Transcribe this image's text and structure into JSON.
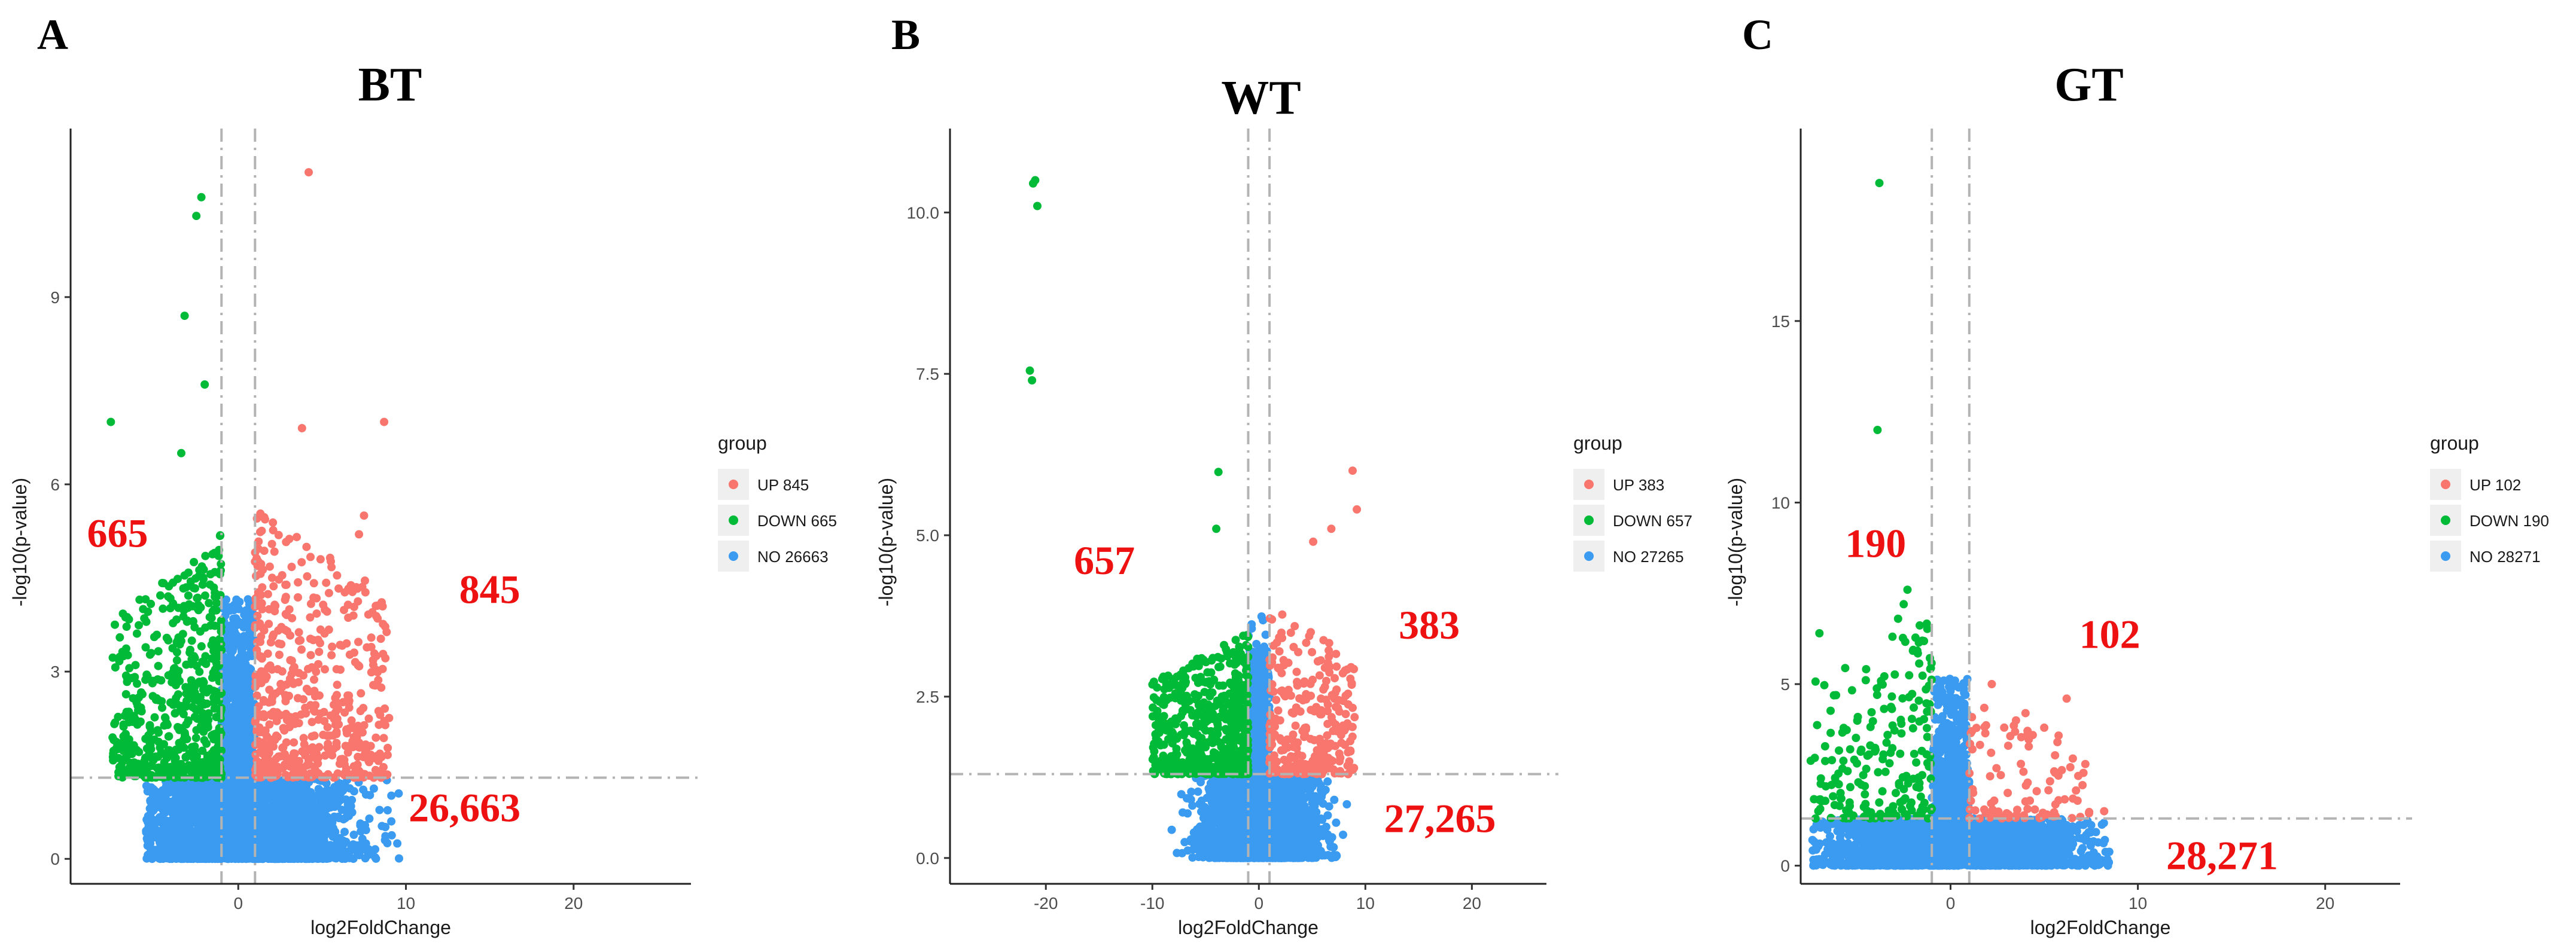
{
  "colors": {
    "up": "#F8766D",
    "down": "#00BA38",
    "no": "#3A9BF0",
    "annotation": "#EE1111",
    "threshold_line": "#B3B3B3"
  },
  "legend_title": "group",
  "chart_data": [
    {
      "type": "scatter",
      "panel": "A",
      "title": "BT",
      "xlabel": "log2FoldChange",
      "ylabel": "-log10(p-value)",
      "xlim": [
        -10,
        27
      ],
      "ylim": [
        -0.4,
        11.7
      ],
      "xticks": [
        0,
        10,
        20
      ],
      "yticks": [
        0,
        3,
        6,
        9
      ],
      "ytick_labels": [
        "0",
        "3",
        "6",
        "9"
      ],
      "fc_threshold": 1,
      "p_threshold_y": 1.3,
      "legend": [
        {
          "group": "UP",
          "label": "UP 845"
        },
        {
          "group": "DOWN",
          "label": "DOWN 665"
        },
        {
          "group": "NO",
          "label": "NO 26663"
        }
      ],
      "counts": {
        "up": 845,
        "down": 665,
        "no": 26663
      },
      "annotations": [
        {
          "text": "665",
          "x": -7.2,
          "y": 5.0
        },
        {
          "text": "845",
          "x": 15.0,
          "y": 4.1
        },
        {
          "text": "26,663",
          "x": 13.5,
          "y": 0.6
        }
      ],
      "up_extremes": [
        [
          4.2,
          11.0
        ],
        [
          8.7,
          7.0
        ],
        [
          7.5,
          5.5
        ],
        [
          7.2,
          5.2
        ],
        [
          3.8,
          6.9
        ]
      ],
      "down_extremes": [
        [
          -2.2,
          10.6
        ],
        [
          -2.5,
          10.3
        ],
        [
          -3.2,
          8.7
        ],
        [
          -2.0,
          7.6
        ],
        [
          -7.6,
          7.0
        ],
        [
          -3.4,
          6.5
        ]
      ],
      "range": {
        "up_x_max": 9.0,
        "down_x_min": -6.5,
        "cloud_x_span": 7.0,
        "cloud_neg_x": -4.5,
        "up_y_max": 5.6,
        "down_y_max": 5.2
      }
    },
    {
      "type": "scatter",
      "panel": "B",
      "title": "WT",
      "xlabel": "log2FoldChange",
      "ylabel": "-log10(p-value)",
      "xlim": [
        -29,
        27
      ],
      "ylim": [
        -0.4,
        11.3
      ],
      "xticks": [
        -20,
        -10,
        0,
        10,
        20
      ],
      "yticks": [
        0,
        2.5,
        5,
        7.5,
        10
      ],
      "ytick_labels": [
        "0.0",
        "2.5",
        "5.0",
        "7.5",
        "10.0"
      ],
      "fc_threshold": 1,
      "p_threshold_y": 1.3,
      "legend": [
        {
          "group": "UP",
          "label": "UP 383"
        },
        {
          "group": "DOWN",
          "label": "DOWN 657"
        },
        {
          "group": "NO",
          "label": "NO 27265"
        }
      ],
      "counts": {
        "up": 383,
        "down": 657,
        "no": 27265
      },
      "annotations": [
        {
          "text": "657",
          "x": -14.5,
          "y": 4.4
        },
        {
          "text": "383",
          "x": 16.0,
          "y": 3.4
        },
        {
          "text": "27,265",
          "x": 17.0,
          "y": 0.4
        }
      ],
      "up_extremes": [
        [
          8.8,
          6.0
        ],
        [
          9.2,
          5.4
        ],
        [
          6.8,
          5.1
        ],
        [
          5.1,
          4.9
        ]
      ],
      "down_extremes": [
        [
          -21.0,
          10.5
        ],
        [
          -21.2,
          10.45
        ],
        [
          -20.8,
          10.1
        ],
        [
          -21.5,
          7.55
        ],
        [
          -21.3,
          7.4
        ],
        [
          -3.8,
          5.98
        ],
        [
          -4.0,
          5.1
        ]
      ],
      "range": {
        "up_x_max": 9.0,
        "down_x_min": -9.0,
        "cloud_x_span": 5.5,
        "cloud_neg_x": -8.5,
        "up_y_max": 3.9,
        "down_y_max": 3.5
      }
    },
    {
      "type": "scatter",
      "panel": "C",
      "title": "GT",
      "xlabel": "log2FoldChange",
      "ylabel": "-log10(p-value)",
      "xlim": [
        -8,
        24
      ],
      "ylim": [
        -0.5,
        20.3
      ],
      "xticks": [
        0,
        10,
        20
      ],
      "yticks": [
        0,
        5,
        10,
        15
      ],
      "ytick_labels": [
        "0",
        "5",
        "10",
        "15"
      ],
      "fc_threshold": 1,
      "p_threshold_y": 1.3,
      "legend": [
        {
          "group": "UP",
          "label": "UP 102"
        },
        {
          "group": "DOWN",
          "label": "DOWN 190"
        },
        {
          "group": "NO",
          "label": "NO 28271"
        }
      ],
      "counts": {
        "up": 102,
        "down": 190,
        "no": 28271
      },
      "annotations": [
        {
          "text": "190",
          "x": -4.0,
          "y": 8.5
        },
        {
          "text": "102",
          "x": 8.5,
          "y": 6.0
        },
        {
          "text": "28,271",
          "x": 14.5,
          "y": -0.1
        }
      ],
      "up_extremes": [
        [
          6.2,
          4.6
        ],
        [
          2.2,
          5.0
        ],
        [
          4.0,
          4.2
        ],
        [
          5.0,
          3.8
        ],
        [
          8.2,
          1.5
        ]
      ],
      "down_extremes": [
        [
          -3.8,
          18.8
        ],
        [
          -3.9,
          12.0
        ],
        [
          -7.0,
          6.4
        ],
        [
          -2.3,
          7.6
        ],
        [
          -2.5,
          7.2
        ],
        [
          -2.8,
          6.8
        ]
      ],
      "range": {
        "up_x_max": 7.5,
        "down_x_min": -6.5,
        "cloud_x_span": 7.0,
        "cloud_neg_x": -6.5,
        "up_y_max": 4.5,
        "down_y_max": 7.0
      }
    }
  ]
}
